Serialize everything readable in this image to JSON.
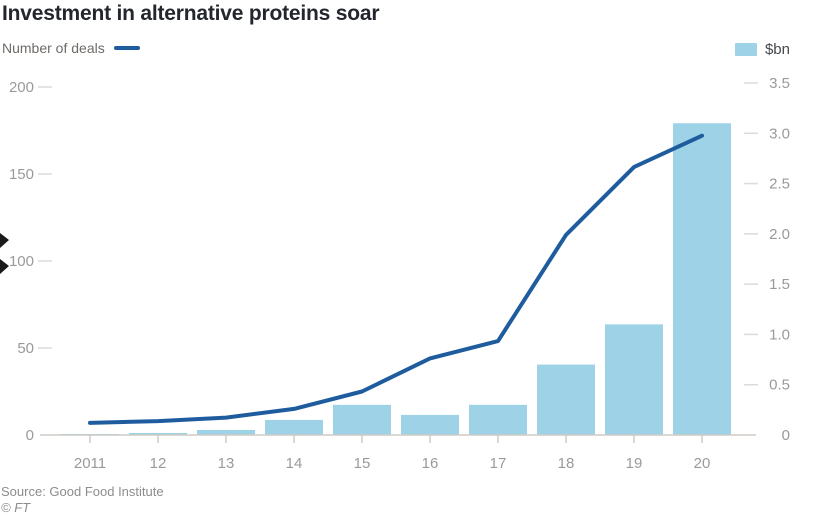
{
  "title": "Investment in alternative proteins soar",
  "legend": {
    "line_label": "Number of deals",
    "bar_label": "$bn"
  },
  "source": "Source: Good Food Institute",
  "copyright": "© FT",
  "colors": {
    "line": "#1e5c9e",
    "bar": "#9ed2e6",
    "axis_text": "#9a9a9a",
    "tick_dash": "#dedad5",
    "axis_line": "#cfcac4",
    "cursor": "#1a1a1a"
  },
  "chart_data": {
    "type": "bar+line",
    "title": "Investment in alternative proteins soar",
    "categories": [
      "2011",
      "12",
      "13",
      "14",
      "15",
      "16",
      "17",
      "18",
      "19",
      "20"
    ],
    "series": [
      {
        "name": "Number of deals",
        "type": "line",
        "axis": "left",
        "values": [
          7,
          8,
          10,
          15,
          25,
          44,
          54,
          115,
          154,
          172
        ]
      },
      {
        "name": "$bn",
        "type": "bar",
        "axis": "right",
        "values": [
          0.01,
          0.02,
          0.05,
          0.15,
          0.3,
          0.2,
          0.3,
          0.7,
          1.1,
          3.1
        ]
      }
    ],
    "left_axis": {
      "label": "Number of deals",
      "range": [
        0,
        200
      ],
      "tick_values": [
        0,
        50,
        100,
        150,
        200
      ],
      "tick_labels": [
        "0",
        "50",
        "100",
        "150",
        "200"
      ]
    },
    "right_axis": {
      "label": "$bn",
      "range": [
        0,
        3.5
      ],
      "tick_values": [
        0,
        0.5,
        1.0,
        1.5,
        2.0,
        2.5,
        3.0,
        3.5
      ],
      "tick_labels": [
        "0",
        "0.5",
        "1.0",
        "1.5",
        "2.0",
        "2.5",
        "3.0",
        "3.5"
      ]
    },
    "grid": "short tick dashes beside axis labels only, no full gridlines",
    "legend_position": "top (line legend left, bar legend right)"
  }
}
